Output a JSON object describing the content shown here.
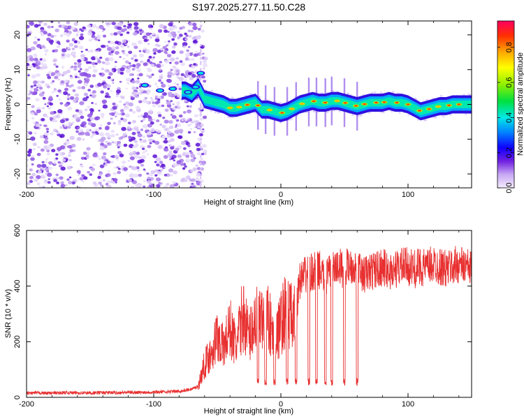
{
  "title": "S197.2025.277.11.50.C28",
  "chart_data": [
    {
      "type": "heatmap",
      "xlabel": "Height of straight line (km)",
      "ylabel": "Frequency (Hz)",
      "xlim": [
        -200,
        150
      ],
      "ylim": [
        -24,
        24
      ],
      "xticks": [
        -200,
        -100,
        0,
        100
      ],
      "yticks": [
        -20,
        -10,
        0,
        10,
        20
      ],
      "colorbar": {
        "label": "Normalized spectral amplitude",
        "range": [
          0,
          0.95
        ],
        "ticks": [
          0,
          0.2,
          0.4,
          0.6,
          0.8
        ],
        "colors": [
          "#e6d6fa",
          "#a070e8",
          "#5000d8",
          "#0010ff",
          "#00a0ff",
          "#00f0d0",
          "#00e040",
          "#a0f000",
          "#ffff00",
          "#ffa000",
          "#ff3000",
          "#ff0060"
        ]
      },
      "noise_region_x": [
        -200,
        -65
      ],
      "ridge": {
        "x": [
          -75,
          -70,
          -65,
          -60,
          -55,
          -50,
          -45,
          -40,
          -35,
          -30,
          -25,
          -20,
          -15,
          -10,
          -5,
          0,
          5,
          10,
          15,
          20,
          25,
          30,
          35,
          40,
          45,
          50,
          55,
          60,
          65,
          70,
          75,
          80,
          85,
          90,
          95,
          100,
          105,
          110,
          115,
          120,
          125,
          130,
          135,
          140,
          145,
          150
        ],
        "y": [
          4,
          3,
          5,
          1.5,
          1,
          0.5,
          0,
          -1,
          -1,
          -0.5,
          0,
          0.5,
          -1.5,
          -1.5,
          -2,
          -2.5,
          -2,
          -1,
          0,
          0.5,
          1,
          0.5,
          0.5,
          1,
          1,
          0.5,
          0,
          -0.5,
          0,
          0.5,
          0.5,
          0.5,
          1,
          0.5,
          0.5,
          0,
          -1,
          -2,
          -1.5,
          -1,
          -0.5,
          -0.5,
          0,
          0,
          0,
          0
        ]
      }
    },
    {
      "type": "line",
      "xlabel": "Height of straight line (km)",
      "ylabel": "SNR (10 * v/v)",
      "xlim": [
        -200,
        150
      ],
      "ylim": [
        0,
        600
      ],
      "xticks": [
        -200,
        -100,
        0,
        100
      ],
      "yticks": [
        0,
        200,
        400,
        600
      ],
      "color": "#e83030",
      "series": {
        "x": [
          -200,
          -190,
          -180,
          -170,
          -160,
          -150,
          -140,
          -130,
          -120,
          -110,
          -100,
          -90,
          -80,
          -75,
          -70,
          -65,
          -60,
          -55,
          -50,
          -45,
          -40,
          -35,
          -30,
          -25,
          -20,
          -15,
          -10,
          -5,
          0,
          5,
          10,
          15,
          20,
          25,
          30,
          35,
          40,
          45,
          50,
          55,
          60,
          65,
          70,
          75,
          80,
          85,
          90,
          95,
          100,
          105,
          110,
          115,
          120,
          125,
          130,
          135,
          140,
          145,
          150
        ],
        "y": [
          15,
          16,
          15,
          17,
          16,
          16,
          17,
          17,
          18,
          18,
          19,
          20,
          22,
          25,
          30,
          40,
          120,
          160,
          220,
          180,
          250,
          180,
          300,
          220,
          280,
          260,
          300,
          190,
          270,
          330,
          260,
          420,
          440,
          450,
          460,
          430,
          450,
          470,
          460,
          480,
          460,
          440,
          450,
          460,
          470,
          450,
          460,
          470,
          470,
          460,
          470,
          465,
          480,
          470,
          460,
          470,
          480,
          470,
          460
        ]
      },
      "dropouts_x": [
        -18,
        -12,
        -5,
        5,
        12,
        22,
        28,
        35,
        40,
        50,
        60
      ]
    }
  ]
}
